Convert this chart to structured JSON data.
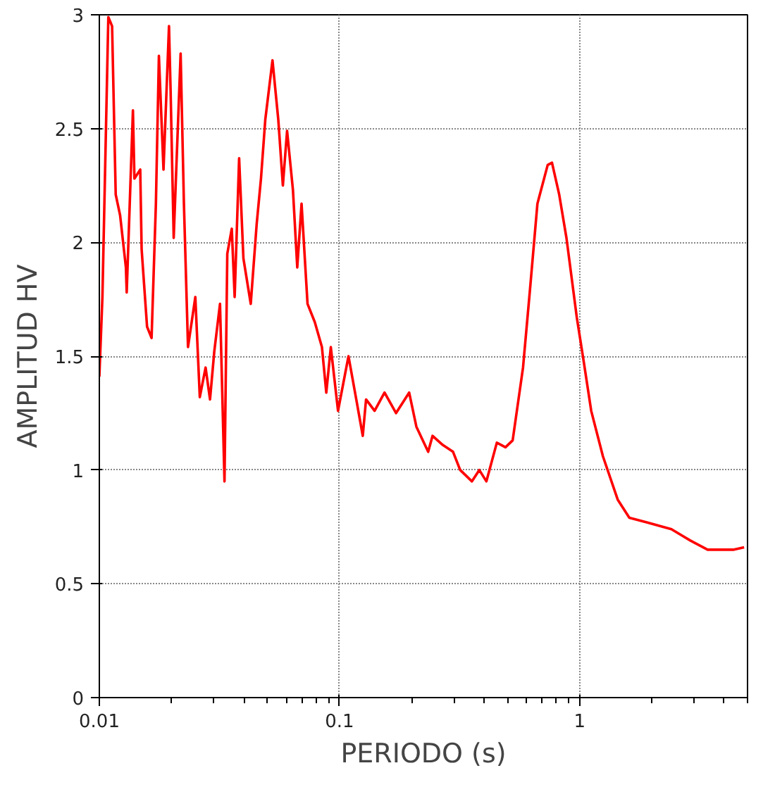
{
  "chart_data": {
    "type": "line",
    "xlabel": "PERIODO (s)",
    "ylabel": "AMPLITUD HV",
    "log": "x",
    "grid": true,
    "line_style": "solid",
    "marker": "none",
    "xlim": [
      0.01,
      5
    ],
    "xticks": [
      0.01,
      0.1,
      1
    ],
    "ylim": [
      0,
      3
    ],
    "yticks": [
      0,
      0.5,
      1,
      1.5,
      2,
      2.5,
      3
    ],
    "series": [
      {
        "color": "#ff0000",
        "x": [
          0.01,
          0.0103,
          0.0109,
          0.0113,
          0.0117,
          0.0122,
          0.0129,
          0.013,
          0.0138,
          0.014,
          0.0148,
          0.015,
          0.0158,
          0.0165,
          0.0172,
          0.0177,
          0.0185,
          0.0195,
          0.0198,
          0.0204,
          0.0218,
          0.0225,
          0.0234,
          0.0251,
          0.0262,
          0.0277,
          0.0289,
          0.0301,
          0.0318,
          0.0332,
          0.0341,
          0.0356,
          0.0366,
          0.0382,
          0.0398,
          0.0427,
          0.0452,
          0.0471,
          0.0491,
          0.0526,
          0.0556,
          0.0581,
          0.0605,
          0.064,
          0.0667,
          0.0695,
          0.0736,
          0.0789,
          0.0845,
          0.0881,
          0.092,
          0.0986,
          0.109,
          0.117,
          0.125,
          0.129,
          0.14,
          0.154,
          0.172,
          0.195,
          0.209,
          0.234,
          0.244,
          0.269,
          0.297,
          0.318,
          0.356,
          0.382,
          0.409,
          0.452,
          0.491,
          0.526,
          0.581,
          0.622,
          0.667,
          0.736,
          0.767,
          0.822,
          0.881,
          0.973,
          1.042,
          1.117,
          1.25,
          1.44,
          1.61,
          1.9,
          2.41,
          2.89,
          3.41,
          4.39,
          4.84
        ],
        "values": [
          1.41,
          1.76,
          2.99,
          2.95,
          2.21,
          2.12,
          1.89,
          1.78,
          2.58,
          2.28,
          2.32,
          1.97,
          1.63,
          1.58,
          2.17,
          2.82,
          2.32,
          2.95,
          2.67,
          2.02,
          2.83,
          2.17,
          1.54,
          1.76,
          1.32,
          1.45,
          1.31,
          1.52,
          1.73,
          0.95,
          1.95,
          2.06,
          1.76,
          2.37,
          1.93,
          1.73,
          2.08,
          2.28,
          2.54,
          2.8,
          2.54,
          2.25,
          2.49,
          2.23,
          1.89,
          2.17,
          1.73,
          1.65,
          1.54,
          1.34,
          1.54,
          1.26,
          1.5,
          1.32,
          1.15,
          1.31,
          1.26,
          1.34,
          1.25,
          1.34,
          1.19,
          1.08,
          1.15,
          1.11,
          1.08,
          1.0,
          0.95,
          1.0,
          0.95,
          1.12,
          1.1,
          1.13,
          1.45,
          1.8,
          2.17,
          2.34,
          2.35,
          2.21,
          2.02,
          1.67,
          1.47,
          1.26,
          1.06,
          0.87,
          0.79,
          0.77,
          0.74,
          0.69,
          0.65,
          0.65,
          0.66
        ]
      }
    ]
  }
}
